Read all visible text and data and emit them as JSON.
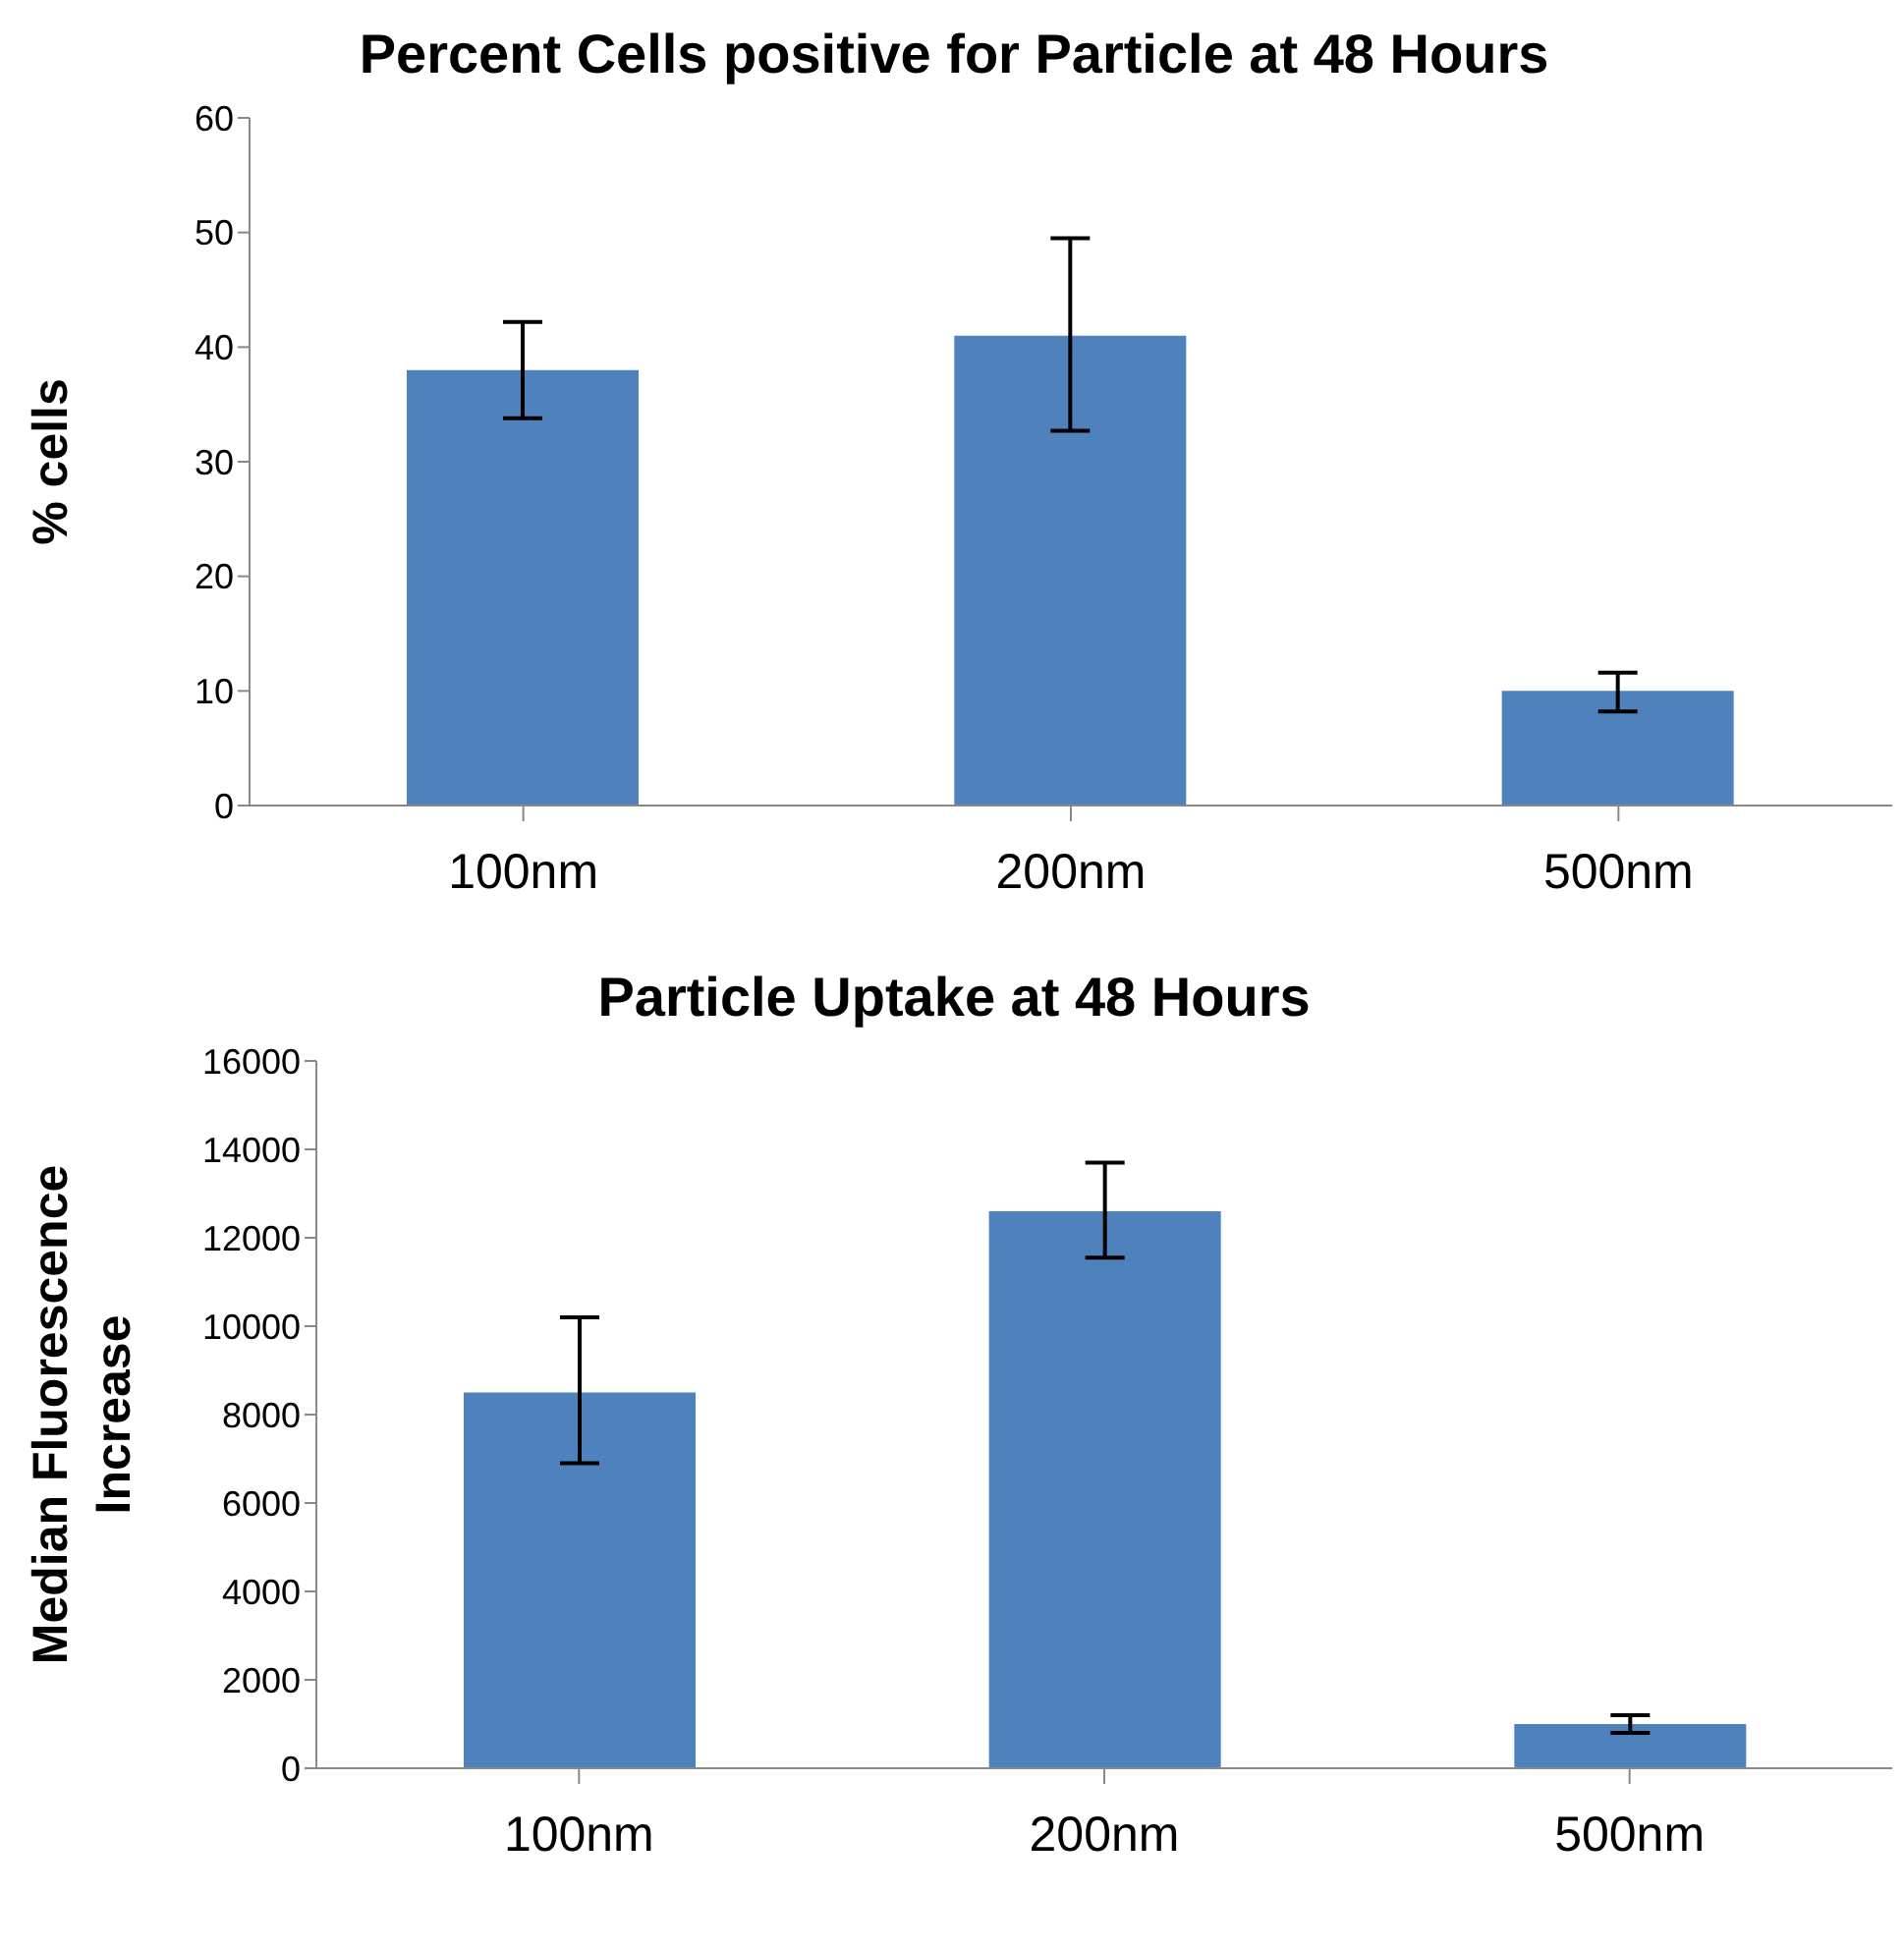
{
  "chart_data": [
    {
      "type": "bar",
      "title": "Percent Cells positive for Particle at 48 Hours",
      "ylabel": "% cells",
      "categories": [
        "100nm",
        "200nm",
        "500nm"
      ],
      "color": "#4f81bd",
      "values": [
        38,
        41,
        10
      ],
      "errors": [
        [
          33.8,
          42.2
        ],
        [
          32.7,
          49.5
        ],
        [
          8.2,
          11.6
        ]
      ],
      "ylim": [
        0,
        60
      ],
      "yticks": [
        0,
        10,
        20,
        30,
        40,
        50,
        60
      ],
      "grid": false,
      "legend": false
    },
    {
      "type": "bar",
      "title": "Particle Uptake at 48 Hours",
      "ylabel": "Median Fluorescence Increase",
      "categories": [
        "100nm",
        "200nm",
        "500nm"
      ],
      "color": "#4f81bd",
      "values": [
        8500,
        12600,
        1000
      ],
      "errors": [
        [
          6900,
          10200
        ],
        [
          11550,
          13700
        ],
        [
          800,
          1200
        ]
      ],
      "ylim": [
        0,
        16000
      ],
      "yticks": [
        0,
        2000,
        4000,
        6000,
        8000,
        10000,
        12000,
        14000,
        16000
      ],
      "grid": false,
      "legend": false
    }
  ]
}
